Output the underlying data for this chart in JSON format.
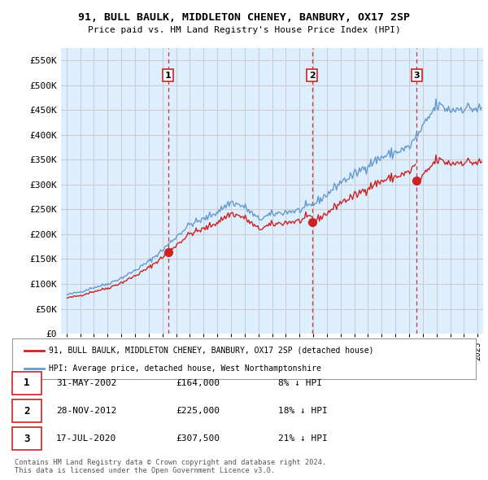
{
  "title": "91, BULL BAULK, MIDDLETON CHENEY, BANBURY, OX17 2SP",
  "subtitle": "Price paid vs. HM Land Registry's House Price Index (HPI)",
  "ylim": [
    0,
    575000
  ],
  "yticks": [
    0,
    50000,
    100000,
    150000,
    200000,
    250000,
    300000,
    350000,
    400000,
    450000,
    500000,
    550000
  ],
  "ytick_labels": [
    "£0",
    "£50K",
    "£100K",
    "£150K",
    "£200K",
    "£250K",
    "£300K",
    "£350K",
    "£400K",
    "£450K",
    "£500K",
    "£550K"
  ],
  "hpi_color": "#6699cc",
  "sale_color": "#cc2222",
  "vline_color": "#cc2222",
  "bg_color": "#ddeeff",
  "grid_color": "#cccccc",
  "sale_points": [
    {
      "year": 2002.42,
      "price": 164000,
      "label": "1"
    },
    {
      "year": 2012.92,
      "price": 225000,
      "label": "2"
    },
    {
      "year": 2020.54,
      "price": 307500,
      "label": "3"
    }
  ],
  "legend_sale": "91, BULL BAULK, MIDDLETON CHENEY, BANBURY, OX17 2SP (detached house)",
  "legend_hpi": "HPI: Average price, detached house, West Northamptonshire",
  "table": [
    {
      "num": "1",
      "date": "31-MAY-2002",
      "price": "£164,000",
      "pct": "8% ↓ HPI"
    },
    {
      "num": "2",
      "date": "28-NOV-2012",
      "price": "£225,000",
      "pct": "18% ↓ HPI"
    },
    {
      "num": "3",
      "date": "17-JUL-2020",
      "price": "£307,500",
      "pct": "21% ↓ HPI"
    }
  ],
  "footer": "Contains HM Land Registry data © Crown copyright and database right 2024.\nThis data is licensed under the Open Government Licence v3.0."
}
